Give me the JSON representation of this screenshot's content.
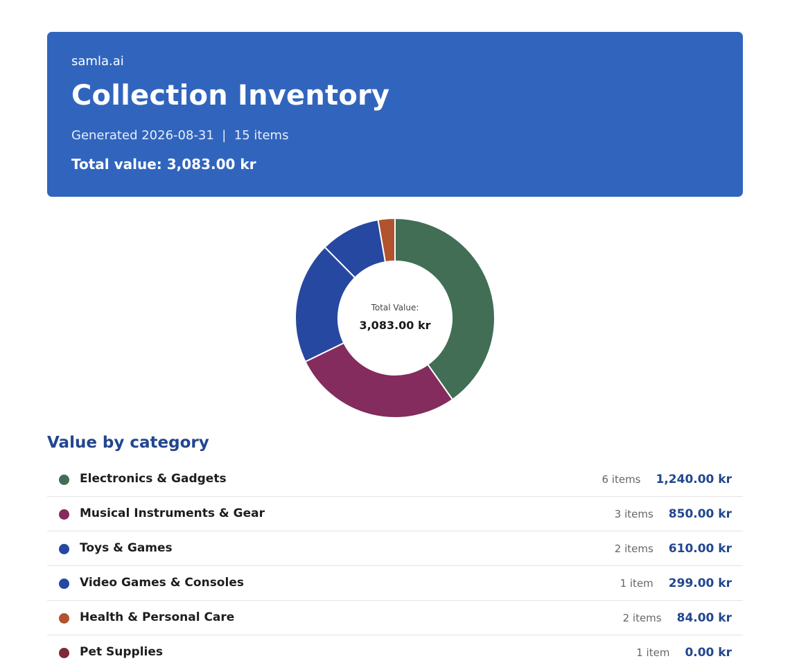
{
  "header": {
    "brand": "samla.ai",
    "title": "Collection Inventory",
    "meta": "Generated 2026-08-31  |  15 items",
    "total": "Total value: 3,083.00 kr"
  },
  "chart_data": {
    "type": "pie",
    "donut": true,
    "center_label": "Total Value:",
    "center_value": "3,083.00 kr",
    "categories": [
      "Electronics & Gadgets",
      "Musical Instruments & Gear",
      "Toys & Games",
      "Video Games & Consoles",
      "Health & Personal Care",
      "Pet Supplies"
    ],
    "values": [
      1240,
      850,
      610,
      299,
      84,
      0
    ],
    "colors": [
      "#416e55",
      "#832c5d",
      "#2748a1",
      "#2748a1",
      "#b1532e",
      "#7b2837"
    ]
  },
  "categories_section": {
    "title": "Value by category",
    "rows": [
      {
        "name": "Electronics & Gadgets",
        "count": "6 items",
        "value": "1,240.00 kr",
        "color": "#416e55"
      },
      {
        "name": "Musical Instruments & Gear",
        "count": "3 items",
        "value": "850.00 kr",
        "color": "#832c5d"
      },
      {
        "name": "Toys & Games",
        "count": "2 items",
        "value": "610.00 kr",
        "color": "#2748a1"
      },
      {
        "name": "Video Games & Consoles",
        "count": "1 item",
        "value": "299.00 kr",
        "color": "#2748a1"
      },
      {
        "name": "Health & Personal Care",
        "count": "2 items",
        "value": "84.00 kr",
        "color": "#b1532e"
      },
      {
        "name": "Pet Supplies",
        "count": "1 item",
        "value": "0.00 kr",
        "color": "#7b2837"
      }
    ]
  }
}
